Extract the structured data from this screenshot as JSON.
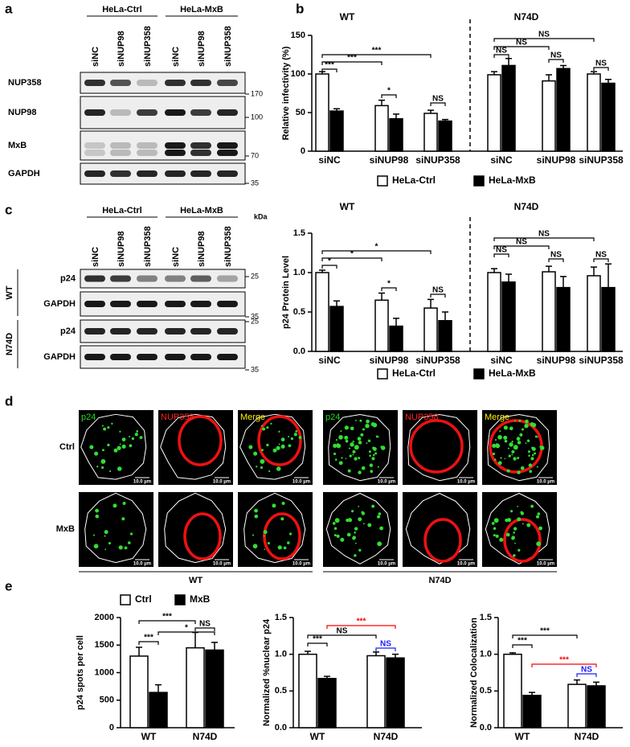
{
  "panel_labels": [
    "a",
    "b",
    "c",
    "d",
    "e"
  ],
  "blot_a": {
    "groups": [
      "HeLa-Ctrl",
      "HeLa-MxB"
    ],
    "lanes": [
      "siNC",
      "siNUP98",
      "siNUP358",
      "siNC",
      "siNUP98",
      "siNUP358"
    ],
    "rows": [
      "NUP358",
      "NUP98",
      "MxB",
      "GAPDH"
    ],
    "markers": [
      "170",
      "100",
      "70",
      "35"
    ]
  },
  "blot_c": {
    "groups": [
      "HeLa-Ctrl",
      "HeLa-MxB"
    ],
    "lanes": [
      "siNC",
      "siNUP98",
      "siNUP358",
      "siNC",
      "siNUP98",
      "siNUP358"
    ],
    "unit": "kDa",
    "sections": [
      {
        "label": "WT",
        "rows": [
          "p24",
          "GAPDH"
        ],
        "markers": [
          "25",
          "35"
        ]
      },
      {
        "label": "N74D",
        "rows": [
          "p24",
          "GAPDH"
        ],
        "markers": [
          "25",
          "35"
        ]
      }
    ]
  },
  "panel_d": {
    "conditions": [
      "WT",
      "N74D"
    ],
    "rows": [
      "Ctrl",
      "MxB"
    ],
    "channels": [
      {
        "label": "p24",
        "color": "#22dd22"
      },
      {
        "label": "NUP358",
        "color": "#ff2020"
      },
      {
        "label": "Merge",
        "color": "#ffee00"
      }
    ],
    "scale": "10.0 µm"
  },
  "chart_data": [
    {
      "type": "bar",
      "group_titles": [
        "WT",
        "N74D"
      ],
      "ylabel": "Relative infectivity (%)",
      "categories": [
        "siNC",
        "siNUP98",
        "siNUP358",
        "siNC",
        "siNUP98",
        "siNUP358"
      ],
      "series": [
        {
          "name": "HeLa-Ctrl",
          "color": "#ffffff",
          "values": [
            100,
            59,
            49,
            99,
            91,
            100
          ],
          "errors": [
            3,
            7,
            4,
            4,
            8,
            3
          ]
        },
        {
          "name": "HeLa-MxB",
          "color": "#000000",
          "values": [
            52,
            42,
            39,
            111,
            107,
            88
          ],
          "errors": [
            3,
            6,
            2,
            9,
            4,
            5
          ]
        }
      ],
      "ylim": [
        0,
        150
      ],
      "yticks": [
        0,
        50,
        100,
        150
      ],
      "annotations": [
        {
          "label": "***",
          "color": "#000000"
        },
        {
          "label": "***",
          "color": "#000000"
        },
        {
          "label": "***",
          "color": "#000000"
        },
        {
          "label": "*",
          "color": "#000000"
        },
        {
          "label": "NS",
          "color": "#000000"
        },
        {
          "label": "NS",
          "color": "#000000"
        },
        {
          "label": "NS",
          "color": "#000000"
        },
        {
          "label": "NS",
          "color": "#000000"
        },
        {
          "label": "NS",
          "color": "#000000"
        },
        {
          "label": "NS",
          "color": "#000000"
        }
      ]
    },
    {
      "type": "bar",
      "group_titles": [
        "WT",
        "N74D"
      ],
      "ylabel": "p24 Protein Level",
      "categories": [
        "siNC",
        "siNUP98",
        "siNUP358",
        "siNC",
        "siNUP98",
        "siNUP358"
      ],
      "series": [
        {
          "name": "HeLa-Ctrl",
          "color": "#ffffff",
          "values": [
            1.0,
            0.65,
            0.55,
            1.0,
            1.01,
            0.96
          ],
          "errors": [
            0.03,
            0.09,
            0.11,
            0.05,
            0.07,
            0.11
          ]
        },
        {
          "name": "HeLa-MxB",
          "color": "#000000",
          "values": [
            0.57,
            0.32,
            0.39,
            0.88,
            0.81,
            0.81
          ],
          "errors": [
            0.07,
            0.1,
            0.11,
            0.1,
            0.14,
            0.3
          ]
        }
      ],
      "ylim": [
        0,
        1.5
      ],
      "yticks": [
        {
          "value": 0,
          "label": "0.0"
        },
        {
          "value": 0.5,
          "label": "0.5"
        },
        {
          "value": 1,
          "label": "1.0"
        },
        {
          "value": 1.5,
          "label": "1.5"
        }
      ],
      "annotations": [
        {
          "label": "*",
          "color": "#000000"
        },
        {
          "label": "*",
          "color": "#000000"
        },
        {
          "label": "*",
          "color": "#000000"
        },
        {
          "label": "*",
          "color": "#000000"
        },
        {
          "label": "NS",
          "color": "#000000"
        },
        {
          "label": "NS",
          "color": "#000000"
        },
        {
          "label": "NS",
          "color": "#000000"
        },
        {
          "label": "NS",
          "color": "#000000"
        },
        {
          "label": "NS",
          "color": "#000000"
        },
        {
          "label": "NS",
          "color": "#000000"
        }
      ]
    },
    {
      "type": "bar",
      "ylabel": "p24 spots per cell",
      "categories": [
        "WT",
        "N74D"
      ],
      "series": [
        {
          "name": "Ctrl",
          "color": "#ffffff",
          "values": [
            1300,
            1450
          ],
          "errors": [
            160,
            280
          ]
        },
        {
          "name": "MxB",
          "color": "#000000",
          "values": [
            640,
            1410
          ],
          "errors": [
            140,
            140
          ]
        }
      ],
      "ylim": [
        0,
        2000
      ],
      "yticks": [
        0,
        500,
        1000,
        1500,
        2000
      ],
      "annotations": [
        {
          "label": "***",
          "color": "#000000"
        },
        {
          "label": "*",
          "color": "#000000"
        },
        {
          "label": "***",
          "color": "#000000"
        },
        {
          "label": "NS",
          "color": "#000000"
        }
      ]
    },
    {
      "type": "bar",
      "ylabel": "Normalized %nuclear p24",
      "categories": [
        "WT",
        "N74D"
      ],
      "series": [
        {
          "color": "#ffffff",
          "values": [
            1.0,
            0.98
          ],
          "errors": [
            0.04,
            0.05
          ]
        },
        {
          "color": "#000000",
          "values": [
            0.67,
            0.95
          ],
          "errors": [
            0.03,
            0.05
          ]
        }
      ],
      "ylim": [
        0,
        1.5
      ],
      "yticks": [
        {
          "value": 0,
          "label": "0.0"
        },
        {
          "value": 0.5,
          "label": "0.5"
        },
        {
          "value": 1,
          "label": "1.0"
        },
        {
          "value": 1.5,
          "label": "1.5"
        }
      ],
      "annotations": [
        {
          "label": "***",
          "color": "#000000"
        },
        {
          "label": "NS",
          "color": "#000000"
        },
        {
          "label": "***",
          "color": "#ff0000"
        },
        {
          "label": "NS",
          "color": "#1a1aff"
        }
      ]
    },
    {
      "type": "bar",
      "ylabel": "Normalized Colocalization",
      "categories": [
        "WT",
        "N74D"
      ],
      "series": [
        {
          "color": "#ffffff",
          "values": [
            1.0,
            0.59
          ],
          "errors": [
            0.02,
            0.06
          ]
        },
        {
          "color": "#000000",
          "values": [
            0.44,
            0.57
          ],
          "errors": [
            0.04,
            0.05
          ]
        }
      ],
      "ylim": [
        0,
        1.5
      ],
      "yticks": [
        {
          "value": 0,
          "label": "0.0"
        },
        {
          "value": 0.5,
          "label": "0.5"
        },
        {
          "value": 1,
          "label": "1.0"
        },
        {
          "value": 1.5,
          "label": "1.5"
        }
      ],
      "annotations": [
        {
          "label": "***",
          "color": "#000000"
        },
        {
          "label": "***",
          "color": "#000000"
        },
        {
          "label": "***",
          "color": "#ff0000"
        },
        {
          "label": "NS",
          "color": "#1a1aff"
        }
      ]
    }
  ]
}
